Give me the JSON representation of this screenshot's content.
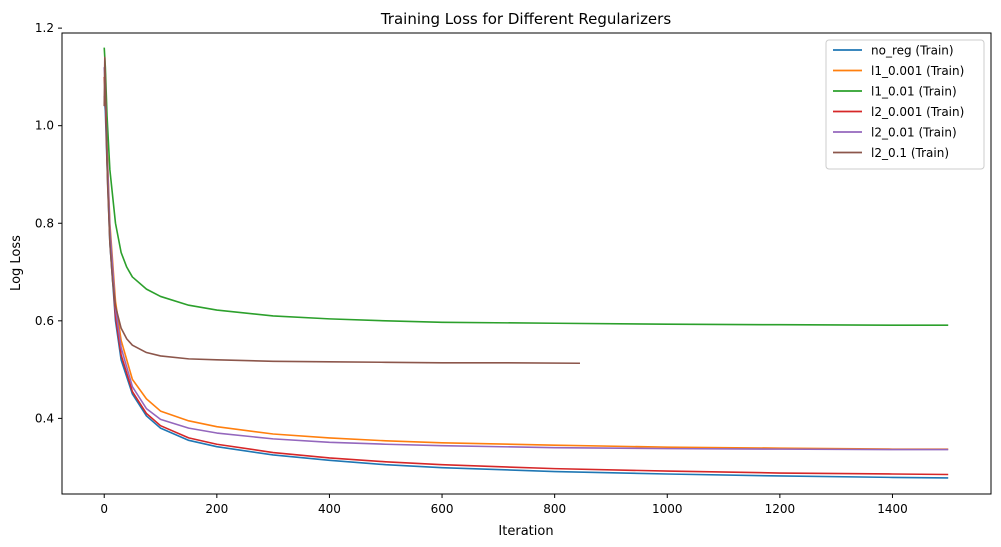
{
  "chart_data": {
    "type": "line",
    "title": "Training Loss for Different Regularizers",
    "xlabel": "Iteration",
    "ylabel": "Log Loss",
    "xlim": [
      -75,
      1575
    ],
    "ylim": [
      0.245,
      1.19
    ],
    "xticks": [
      0,
      200,
      400,
      600,
      800,
      1000,
      1200,
      1400
    ],
    "yticks": [
      0.4,
      0.6,
      0.8,
      1.0,
      1.2
    ],
    "ytick_labels": [
      "0.4",
      "0.6",
      "0.8",
      "1.0",
      "1.2"
    ],
    "grid": false,
    "legend_position": "top-right",
    "series": [
      {
        "name": "no_reg (Train)",
        "color": "#1f77b4",
        "x": [
          0,
          2,
          5,
          10,
          20,
          30,
          50,
          75,
          100,
          150,
          200,
          300,
          400,
          500,
          600,
          800,
          1000,
          1200,
          1400,
          1499
        ],
        "y": [
          1.06,
          1.03,
          0.92,
          0.76,
          0.6,
          0.52,
          0.45,
          0.405,
          0.38,
          0.355,
          0.342,
          0.325,
          0.314,
          0.305,
          0.299,
          0.291,
          0.286,
          0.282,
          0.279,
          0.278
        ]
      },
      {
        "name": "l1_0.001 (Train)",
        "color": "#ff7f0e",
        "x": [
          0,
          2,
          5,
          10,
          20,
          30,
          50,
          75,
          100,
          150,
          200,
          300,
          400,
          500,
          600,
          800,
          1000,
          1200,
          1400,
          1499
        ],
        "y": [
          1.1,
          1.07,
          0.96,
          0.8,
          0.64,
          0.56,
          0.48,
          0.44,
          0.415,
          0.395,
          0.383,
          0.368,
          0.36,
          0.354,
          0.35,
          0.345,
          0.341,
          0.339,
          0.337,
          0.337
        ]
      },
      {
        "name": "l1_0.01 (Train)",
        "color": "#2ca02c",
        "x": [
          0,
          2,
          5,
          10,
          20,
          30,
          40,
          50,
          75,
          100,
          150,
          200,
          300,
          400,
          500,
          600,
          800,
          1000,
          1200,
          1400,
          1499
        ],
        "y": [
          1.16,
          1.12,
          1.02,
          0.91,
          0.8,
          0.74,
          0.71,
          0.69,
          0.665,
          0.65,
          0.632,
          0.622,
          0.61,
          0.604,
          0.6,
          0.597,
          0.595,
          0.593,
          0.592,
          0.591,
          0.591
        ]
      },
      {
        "name": "l2_0.001 (Train)",
        "color": "#d62728",
        "x": [
          0,
          2,
          5,
          10,
          20,
          30,
          50,
          75,
          100,
          150,
          200,
          300,
          400,
          500,
          600,
          800,
          1000,
          1200,
          1400,
          1499
        ],
        "y": [
          1.1,
          1.06,
          0.93,
          0.77,
          0.61,
          0.53,
          0.455,
          0.41,
          0.385,
          0.36,
          0.347,
          0.33,
          0.319,
          0.311,
          0.305,
          0.297,
          0.292,
          0.288,
          0.286,
          0.285
        ]
      },
      {
        "name": "l2_0.01 (Train)",
        "color": "#9467bd",
        "x": [
          0,
          2,
          5,
          10,
          20,
          30,
          50,
          75,
          100,
          150,
          200,
          300,
          400,
          500,
          600,
          800,
          1000,
          1200,
          1400,
          1499
        ],
        "y": [
          1.12,
          1.08,
          0.95,
          0.79,
          0.625,
          0.545,
          0.465,
          0.42,
          0.398,
          0.38,
          0.37,
          0.358,
          0.351,
          0.347,
          0.344,
          0.34,
          0.338,
          0.337,
          0.336,
          0.336
        ]
      },
      {
        "name": "l2_0.1 (Train)",
        "color": "#8c564b",
        "x": [
          0,
          1,
          2,
          4,
          6,
          10,
          15,
          20,
          30,
          40,
          50,
          75,
          100,
          150,
          200,
          300,
          400,
          500,
          600,
          700,
          845
        ],
        "y": [
          1.04,
          1.14,
          1.1,
          0.98,
          0.88,
          0.76,
          0.68,
          0.63,
          0.585,
          0.563,
          0.55,
          0.535,
          0.528,
          0.522,
          0.52,
          0.517,
          0.516,
          0.515,
          0.514,
          0.514,
          0.513
        ]
      }
    ]
  }
}
